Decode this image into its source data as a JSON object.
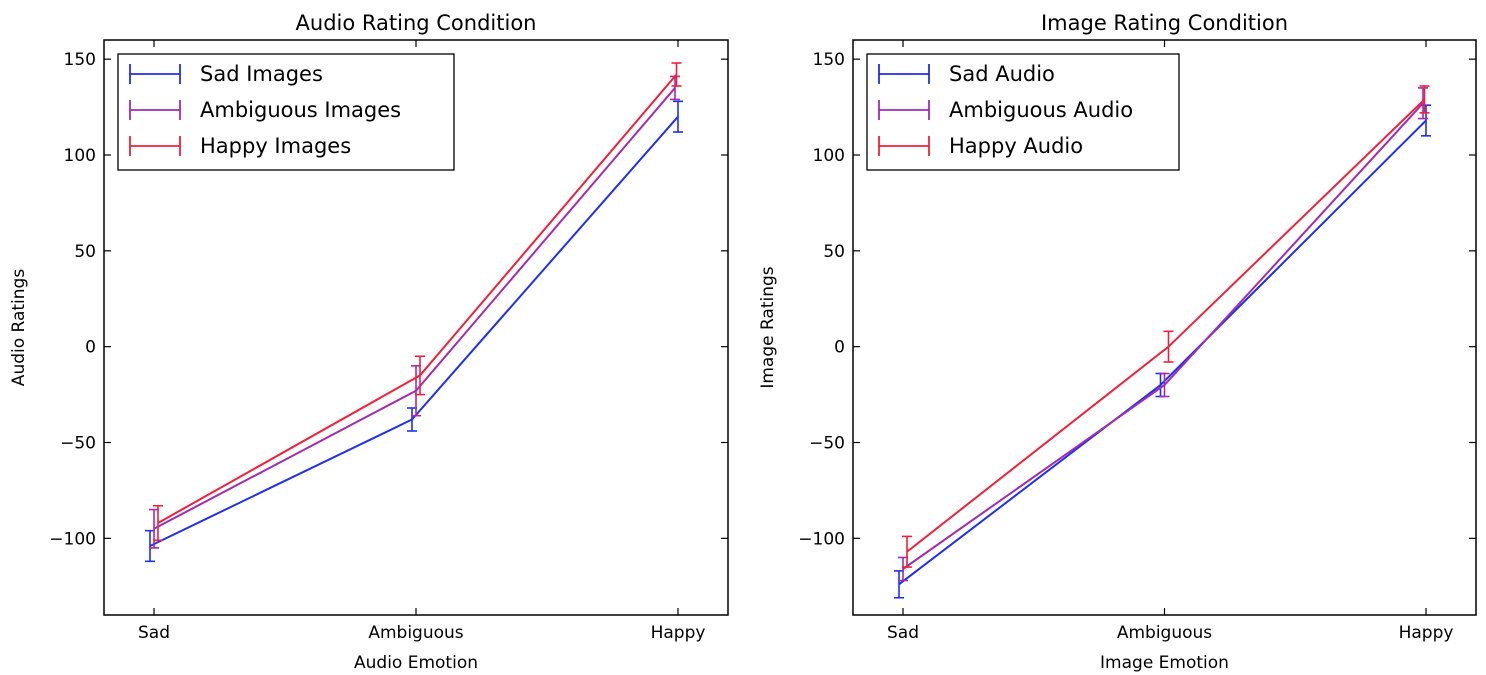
{
  "chart_data": [
    {
      "type": "line",
      "title": "Audio Rating Condition",
      "xlabel": "Audio Emotion",
      "ylabel": "Audio Ratings",
      "categories": [
        "Sad",
        "Ambiguous",
        "Happy"
      ],
      "ylim": [
        -140,
        160
      ],
      "yticks": [
        -100,
        -50,
        0,
        50,
        100,
        150
      ],
      "grid": false,
      "legend_position": "top-left",
      "series": [
        {
          "name": "Sad Images",
          "color": "#1f2ff0",
          "values": [
            -104,
            -38,
            120
          ],
          "errors": [
            8,
            6,
            8
          ]
        },
        {
          "name": "Ambiguous Images",
          "color": "#a22bb0",
          "values": [
            -95,
            -23,
            135
          ],
          "errors": [
            10,
            13,
            6
          ]
        },
        {
          "name": "Happy Images",
          "color": "#f0203a",
          "values": [
            -92,
            -15,
            142
          ],
          "errors": [
            9,
            10,
            6
          ]
        }
      ]
    },
    {
      "type": "line",
      "title": "Image Rating Condition",
      "xlabel": "Image Emotion",
      "ylabel": "Image Ratings",
      "categories": [
        "Sad",
        "Ambiguous",
        "Happy"
      ],
      "ylim": [
        -140,
        160
      ],
      "yticks": [
        -100,
        -50,
        0,
        50,
        100,
        150
      ],
      "grid": false,
      "legend_position": "top-left",
      "series": [
        {
          "name": "Sad Audio",
          "color": "#1f2ff0",
          "values": [
            -124,
            -20,
            118
          ],
          "errors": [
            7,
            6,
            8
          ]
        },
        {
          "name": "Ambiguous Audio",
          "color": "#a22bb0",
          "values": [
            -116,
            -20,
            127
          ],
          "errors": [
            6,
            6,
            8
          ]
        },
        {
          "name": "Happy Audio",
          "color": "#f0203a",
          "values": [
            -107,
            0,
            129
          ],
          "errors": [
            8,
            8,
            7
          ]
        }
      ]
    }
  ]
}
